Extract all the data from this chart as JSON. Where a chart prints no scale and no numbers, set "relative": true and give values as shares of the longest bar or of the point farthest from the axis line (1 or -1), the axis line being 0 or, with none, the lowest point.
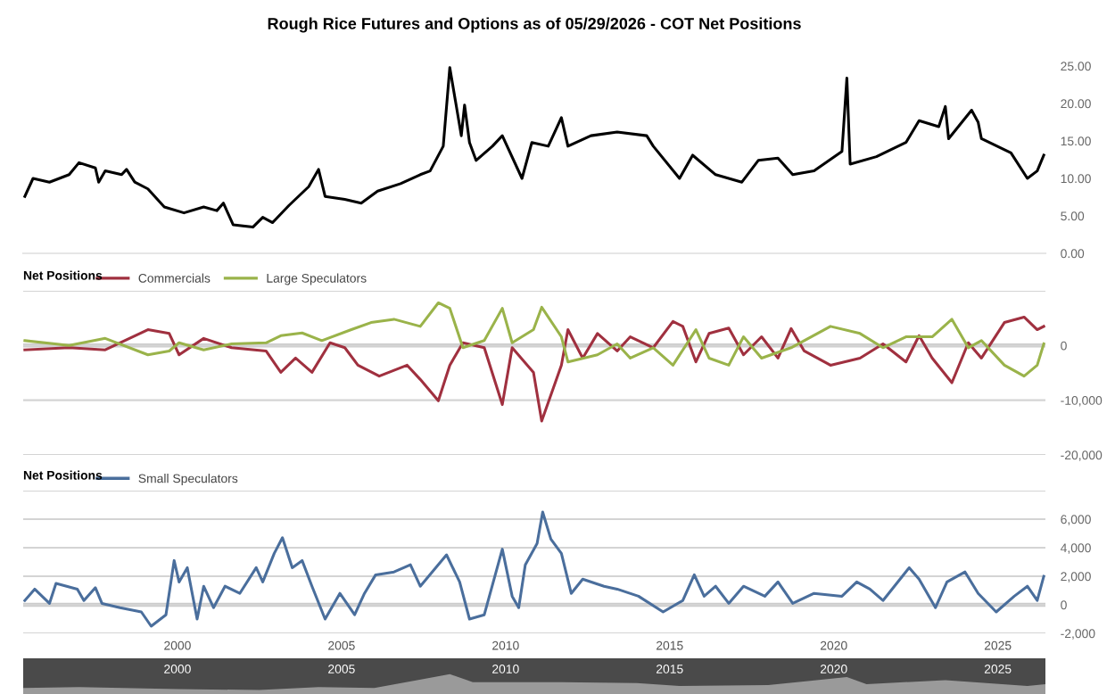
{
  "chart_data": [
    {
      "type": "line",
      "title": "Rough Rice Futures and Options as of 05/29/2026 - COT Net Positions",
      "xlim": [
        1995.3,
        2026.45
      ],
      "xticks": [
        2000,
        2005,
        2010,
        2015,
        2020,
        2025
      ],
      "ylim": [
        0,
        25
      ],
      "yticks": [
        {
          "value": 0,
          "label": "0.00"
        },
        {
          "value": 5,
          "label": "5.00"
        },
        {
          "value": 10,
          "label": "10.00"
        },
        {
          "value": 15,
          "label": "15.00"
        },
        {
          "value": 20,
          "label": "20.00"
        },
        {
          "value": 25,
          "label": "25.00"
        }
      ],
      "tick_labels": "y",
      "grid": false,
      "legend": false,
      "series": [
        {
          "color": "#000000",
          "x": [
            1995.35,
            1995.6,
            1996.1,
            1996.7,
            1997.0,
            1997.5,
            1997.6,
            1997.8,
            1998.3,
            1998.45,
            1998.7,
            1999.1,
            1999.6,
            2000.2,
            2000.8,
            2001.2,
            2001.4,
            2001.7,
            2002.3,
            2002.6,
            2002.9,
            2003.4,
            2004.0,
            2004.3,
            2004.5,
            2005.1,
            2005.6,
            2006.1,
            2006.8,
            2007.4,
            2007.7,
            2008.1,
            2008.3,
            2008.5,
            2008.65,
            2008.75,
            2008.9,
            2009.1,
            2009.6,
            2009.9,
            2010.5,
            2010.8,
            2011.3,
            2011.7,
            2011.9,
            2012.6,
            2013.4,
            2014.3,
            2014.5,
            2015.3,
            2015.7,
            2016.4,
            2017.2,
            2017.7,
            2018.3,
            2018.75,
            2019.4,
            2020.25,
            2020.4,
            2020.5,
            2021.3,
            2022.2,
            2022.6,
            2023.2,
            2023.4,
            2023.5,
            2024.2,
            2024.4,
            2024.5,
            2025.4,
            2025.9,
            2026.2,
            2026.4
          ],
          "values": [
            7.6,
            10.0,
            9.5,
            10.5,
            12.1,
            11.4,
            9.5,
            11.0,
            10.5,
            11.2,
            9.5,
            8.6,
            6.2,
            5.4,
            6.2,
            5.7,
            6.7,
            3.8,
            3.5,
            4.8,
            4.1,
            6.4,
            8.9,
            11.2,
            7.6,
            7.2,
            6.7,
            8.3,
            9.3,
            10.5,
            11.0,
            14.3,
            24.8,
            19.6,
            15.7,
            19.8,
            14.8,
            12.4,
            14.3,
            15.7,
            10.0,
            14.8,
            14.3,
            18.1,
            14.3,
            15.7,
            16.2,
            15.7,
            14.3,
            10.0,
            13.1,
            10.5,
            9.5,
            12.4,
            12.7,
            10.5,
            11.0,
            13.6,
            23.4,
            11.9,
            12.9,
            14.8,
            17.7,
            16.9,
            19.6,
            15.3,
            19.1,
            17.5,
            15.3,
            13.4,
            10.0,
            11.0,
            13.1
          ]
        }
      ]
    },
    {
      "type": "line",
      "legend_title": "Net Positions",
      "legend": "top left",
      "xlim": [
        1995.3,
        2026.45
      ],
      "xticks": [
        2000,
        2005,
        2010,
        2015,
        2020,
        2025
      ],
      "ylim": [
        -20000,
        10000
      ],
      "yticks": [
        {
          "value": -20000,
          "label": "-20,000"
        },
        {
          "value": -10000,
          "label": "-10,000"
        },
        0,
        {
          "value": 10000,
          "label": null
        }
      ],
      "tick_labels": "y",
      "grid": "y",
      "ref_lines": [
        {
          "axis": "y",
          "value": 0,
          "color": "#cccccc"
        }
      ],
      "series": [
        {
          "name": "Commercials",
          "color": "#a0303f",
          "x": [
            1995.35,
            1996.7,
            1997.8,
            1999.1,
            1999.75,
            2000.05,
            2000.8,
            2001.65,
            2002.7,
            2003.15,
            2003.6,
            2004.1,
            2004.65,
            2005.1,
            2005.5,
            2006.15,
            2007.0,
            2007.4,
            2007.95,
            2008.3,
            2008.7,
            2009.35,
            2009.9,
            2010.2,
            2010.85,
            2011.1,
            2011.7,
            2011.9,
            2012.35,
            2012.8,
            2013.4,
            2013.8,
            2014.5,
            2015.1,
            2015.4,
            2015.8,
            2016.2,
            2016.8,
            2017.25,
            2017.8,
            2018.3,
            2018.7,
            2019.1,
            2019.9,
            2020.8,
            2021.5,
            2022.2,
            2022.6,
            2023.0,
            2023.6,
            2024.1,
            2024.5,
            2025.2,
            2025.8,
            2026.2,
            2026.4
          ],
          "values": [
            -800,
            -400,
            -800,
            2900,
            2200,
            -1700,
            1300,
            -400,
            -1000,
            -4900,
            -2300,
            -4900,
            500,
            -400,
            -3600,
            -5600,
            -3600,
            -6200,
            -10100,
            -3600,
            500,
            -400,
            -10800,
            -400,
            -4900,
            -13800,
            -3600,
            2900,
            -2300,
            2200,
            -1000,
            1600,
            -400,
            4400,
            3500,
            -3000,
            2200,
            3200,
            -1700,
            1600,
            -2300,
            3100,
            -1000,
            -3600,
            -2300,
            300,
            -3000,
            1800,
            -2300,
            -6800,
            500,
            -2300,
            4200,
            5200,
            2900,
            3500
          ]
        },
        {
          "name": "Large Speculators",
          "color": "#9ab34a",
          "x": [
            1995.35,
            1996.7,
            1997.8,
            1999.1,
            1999.75,
            2000.05,
            2000.8,
            2001.65,
            2002.7,
            2003.15,
            2003.8,
            2004.4,
            2005.3,
            2005.9,
            2006.6,
            2007.4,
            2007.95,
            2008.3,
            2008.7,
            2009.35,
            2009.9,
            2010.2,
            2010.85,
            2011.1,
            2011.7,
            2011.9,
            2012.8,
            2013.4,
            2013.8,
            2014.5,
            2015.1,
            2015.8,
            2016.2,
            2016.8,
            2017.25,
            2017.8,
            2018.7,
            2019.9,
            2020.8,
            2021.5,
            2022.2,
            2023.0,
            2023.6,
            2024.1,
            2024.5,
            2025.2,
            2025.8,
            2026.2,
            2026.4
          ],
          "values": [
            900,
            0,
            1300,
            -1700,
            -1000,
            500,
            -800,
            300,
            500,
            1800,
            2300,
            900,
            2900,
            4200,
            4800,
            3500,
            7800,
            6800,
            -400,
            900,
            6800,
            500,
            2900,
            7000,
            1600,
            -3000,
            -1700,
            300,
            -2300,
            -400,
            -3600,
            2900,
            -2300,
            -3600,
            1600,
            -2300,
            -400,
            3500,
            2200,
            -400,
            1600,
            1600,
            4800,
            -400,
            900,
            -3600,
            -5600,
            -3600,
            300
          ]
        }
      ]
    },
    {
      "type": "line",
      "legend_title": "Net Positions",
      "legend": "top left",
      "xlim": [
        1995.3,
        2026.45
      ],
      "ylim": [
        -2000,
        8000
      ],
      "xticks": [
        2000,
        2005,
        2010,
        2015,
        2020,
        2025
      ],
      "yticks": [
        {
          "value": -2000,
          "label": "-2,000"
        },
        0,
        {
          "value": 2000,
          "label": "2,000"
        },
        {
          "value": 4000,
          "label": "4,000"
        },
        {
          "value": 6000,
          "label": "6,000"
        },
        {
          "value": 8000,
          "label": null
        }
      ],
      "grid": "y",
      "ref_lines": [
        {
          "axis": "y",
          "value": 0,
          "color": "#cccccc"
        }
      ],
      "series": [
        {
          "name": "Small Speculators",
          "color": "#4a6e9c",
          "x": [
            1995.35,
            1995.65,
            1996.1,
            1996.3,
            1996.95,
            1997.15,
            1997.5,
            1997.7,
            1998.25,
            1998.9,
            1999.2,
            1999.65,
            1999.9,
            2000.05,
            2000.3,
            2000.6,
            2000.8,
            2001.1,
            2001.45,
            2001.9,
            2002.4,
            2002.6,
            2002.95,
            2003.2,
            2003.5,
            2003.8,
            2004.1,
            2004.5,
            2004.95,
            2005.4,
            2005.7,
            2006.04,
            2006.6,
            2007.1,
            2007.4,
            2008.2,
            2008.6,
            2008.9,
            2009.35,
            2009.9,
            2010.2,
            2010.4,
            2010.6,
            2010.96,
            2011.13,
            2011.38,
            2011.7,
            2012.0,
            2012.35,
            2013.0,
            2013.4,
            2014.05,
            2014.8,
            2015.4,
            2015.75,
            2016.05,
            2016.4,
            2016.8,
            2017.25,
            2017.9,
            2018.3,
            2018.75,
            2019.4,
            2020.25,
            2020.7,
            2021.1,
            2021.5,
            2022.3,
            2022.6,
            2023.1,
            2023.45,
            2024.0,
            2024.4,
            2024.95,
            2025.5,
            2025.9,
            2026.2,
            2026.4
          ],
          "values": [
            300,
            1100,
            100,
            1500,
            1100,
            300,
            1200,
            100,
            -200,
            -500,
            -1500,
            -700,
            3100,
            1600,
            2600,
            -1000,
            1300,
            -200,
            1300,
            800,
            2600,
            1600,
            3600,
            4700,
            2600,
            3100,
            1300,
            -1000,
            800,
            -700,
            800,
            2100,
            2300,
            2800,
            1300,
            3500,
            1600,
            -1000,
            -700,
            3900,
            600,
            -200,
            2800,
            4300,
            6500,
            4600,
            3600,
            800,
            1800,
            1300,
            1100,
            600,
            -500,
            300,
            2100,
            600,
            1300,
            100,
            1300,
            600,
            1600,
            100,
            800,
            600,
            1600,
            1100,
            300,
            2600,
            1800,
            -200,
            1600,
            2300,
            800,
            -500,
            600,
            1300,
            300,
            2000
          ]
        }
      ]
    },
    {
      "type": "area",
      "relative": true,
      "xlim": [
        1995.3,
        2026.45
      ],
      "xticks": [
        2000,
        2005,
        2010,
        2015,
        2020,
        2025
      ],
      "tick_labels": "x",
      "series": [
        {
          "color": "#9a9a9a",
          "x": [
            1995.3,
            1997,
            2000,
            2002.5,
            2004.3,
            2006,
            2008.3,
            2009,
            2011.7,
            2014,
            2015.3,
            2018,
            2020.4,
            2021,
            2023.4,
            2025.9,
            2026.45
          ],
          "values": [
            0.3,
            0.35,
            0.25,
            0.2,
            0.35,
            0.3,
            1.0,
            0.6,
            0.6,
            0.55,
            0.4,
            0.45,
            0.85,
            0.5,
            0.7,
            0.4,
            0.5
          ]
        }
      ]
    }
  ]
}
